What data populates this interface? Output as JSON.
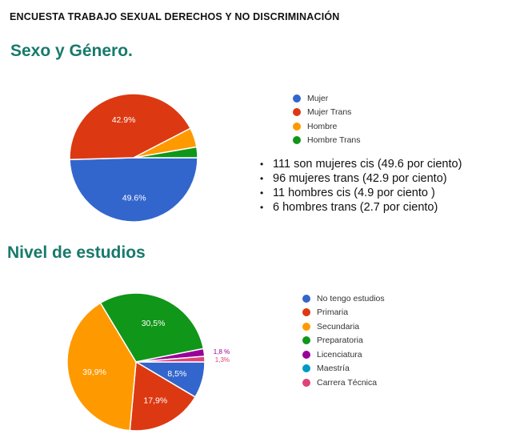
{
  "document": {
    "title": "ENCUESTA TRABAJO SEXUAL DERECHOS Y NO DISCRIMINACIÓN"
  },
  "sections": {
    "sexo_genero": {
      "title": "Sexo y Género.",
      "bullets": [
        "111 son mujeres cis (49.6 por ciento)",
        "96 mujeres trans (42.9 por ciento)",
        "11 hombres cis (4.9 por ciento )",
        "6 hombres trans (2.7 por ciento)"
      ]
    },
    "nivel_estudios": {
      "title": "Nivel de estudios"
    }
  },
  "chart_data": [
    {
      "type": "pie",
      "categories": [
        "Mujer",
        "Mujer Trans",
        "Hombre",
        "Hombre Trans"
      ],
      "values": [
        49.6,
        42.9,
        4.9,
        2.7
      ],
      "labels": [
        "49.6%",
        "42.9%",
        "",
        ""
      ],
      "colors": [
        "#3366cc",
        "#dc3912",
        "#ff9900",
        "#109618"
      ],
      "legend": "right"
    },
    {
      "type": "pie",
      "categories": [
        "No tengo estudios",
        "Primaria",
        "Secundaria",
        "Preparatoria",
        "Licenciatura",
        "Maestría",
        "Carrera Técnica"
      ],
      "values": [
        8.5,
        17.9,
        39.9,
        30.5,
        1.8,
        0,
        1.3
      ],
      "labels": [
        "8,5%",
        "17,9%",
        "39,9%",
        "30,5%",
        "1,8 %",
        "",
        "1,3%"
      ],
      "colors": [
        "#3366cc",
        "#dc3912",
        "#ff9900",
        "#109618",
        "#990099",
        "#0099c6",
        "#dd4477"
      ],
      "legend": "right"
    }
  ]
}
